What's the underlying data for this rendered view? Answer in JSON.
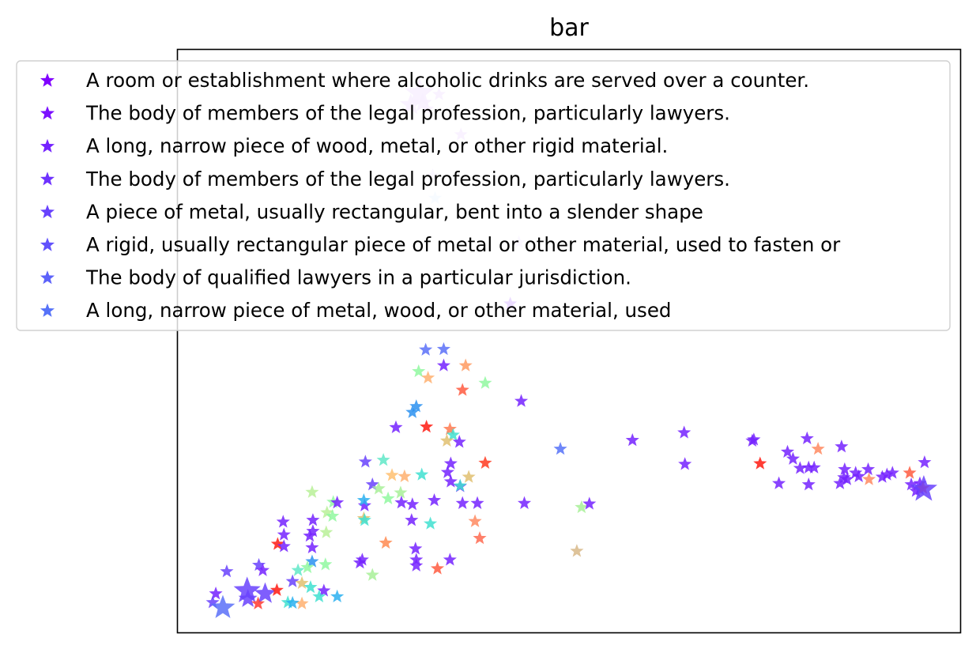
{
  "chart_data": {
    "type": "scatter",
    "title": "bar",
    "xlabel": "",
    "ylabel": "",
    "xlim": [
      0,
      100
    ],
    "ylim": [
      0,
      100
    ],
    "axis_ticks": "none",
    "grid": false,
    "legend_position": "top",
    "marker": "star",
    "colormap": "rainbow",
    "legend": [
      {
        "label": "A room or establishment where alcoholic drinks are served over a counter.",
        "color": "#8000ff"
      },
      {
        "label": "The body of members of the legal profession, particularly lawyers.",
        "color": "#7b10ff"
      },
      {
        "label": "A long, narrow piece of wood, metal, or other rigid material.",
        "color": "#7422ff"
      },
      {
        "label": "The body of members of the legal profession, particularly lawyers.",
        "color": "#6e32fe"
      },
      {
        "label": "A piece of metal, usually rectangular, bent into a slender shape",
        "color": "#6842fd"
      },
      {
        "label": "A rigid, usually rectangular piece of metal or other material, used to fasten or",
        "color": "#6252fc"
      },
      {
        "label": "The body of qualified lawyers in a particular jurisdiction.",
        "color": "#5c62fa"
      },
      {
        "label": "A long, narrow piece of metal, wood, or other material, used",
        "color": "#5672f8"
      }
    ],
    "points": [
      {
        "x": 30.9,
        "y": 92.5,
        "color": "#d8b0ff",
        "size": 2.2
      },
      {
        "x": 29.8,
        "y": 90.5,
        "color": "#d8b0ff",
        "size": 1.6
      },
      {
        "x": 31.3,
        "y": 90.8,
        "color": "#d8b0ff",
        "size": 1.4
      },
      {
        "x": 33.4,
        "y": 92.3,
        "color": "#d8b0ff",
        "size": 1.0
      },
      {
        "x": 31.9,
        "y": 89.8,
        "color": "#d8b0ff",
        "size": 1.0
      },
      {
        "x": 36.2,
        "y": 85.4,
        "color": "#d8b0ff",
        "size": 1.0
      },
      {
        "x": 32.6,
        "y": 78.4,
        "color": "#e0ccff",
        "size": 1.0
      },
      {
        "x": 32.9,
        "y": 74.5,
        "color": "#cfe8ff",
        "size": 1.0
      },
      {
        "x": 43.6,
        "y": 66.9,
        "color": "#e0ccff",
        "size": 1.0
      },
      {
        "x": 42.5,
        "y": 56.4,
        "color": "#8a30ff",
        "size": 1.0
      },
      {
        "x": 31.7,
        "y": 48.5,
        "color": "#5a70f8",
        "size": 1.0
      },
      {
        "x": 34.0,
        "y": 48.6,
        "color": "#5a70f8",
        "size": 1.0
      },
      {
        "x": 34.0,
        "y": 45.8,
        "color": "#7422ff",
        "size": 1.0
      },
      {
        "x": 36.8,
        "y": 45.8,
        "color": "#ff9a60",
        "size": 1.0
      },
      {
        "x": 30.8,
        "y": 44.8,
        "color": "#90f8a0",
        "size": 1.0
      },
      {
        "x": 32.0,
        "y": 43.7,
        "color": "#ffb070",
        "size": 1.0
      },
      {
        "x": 39.3,
        "y": 42.8,
        "color": "#90f8a0",
        "size": 1.0
      },
      {
        "x": 36.4,
        "y": 41.6,
        "color": "#ff5a40",
        "size": 1.0
      },
      {
        "x": 43.9,
        "y": 39.7,
        "color": "#7422ff",
        "size": 1.0
      },
      {
        "x": 30.0,
        "y": 37.8,
        "color": "#2a90f0",
        "size": 1.0
      },
      {
        "x": 30.5,
        "y": 38.8,
        "color": "#2a90f0",
        "size": 1.0
      },
      {
        "x": 27.9,
        "y": 35.2,
        "color": "#7422ff",
        "size": 1.0
      },
      {
        "x": 31.8,
        "y": 35.3,
        "color": "#ff1a10",
        "size": 1.0
      },
      {
        "x": 34.8,
        "y": 34.9,
        "color": "#ff7a50",
        "size": 1.0
      },
      {
        "x": 35.2,
        "y": 33.9,
        "color": "#40e0d0",
        "size": 1.0
      },
      {
        "x": 34.4,
        "y": 32.9,
        "color": "#e0c070",
        "size": 1.0
      },
      {
        "x": 36.0,
        "y": 32.7,
        "color": "#7422ff",
        "size": 1.0
      },
      {
        "x": 58.1,
        "y": 33.0,
        "color": "#7422ff",
        "size": 1.0
      },
      {
        "x": 64.7,
        "y": 34.3,
        "color": "#7422ff",
        "size": 1.0
      },
      {
        "x": 48.9,
        "y": 31.5,
        "color": "#5672f8",
        "size": 1.0
      },
      {
        "x": 73.6,
        "y": 33.1,
        "color": "#7422ff",
        "size": 1.0
      },
      {
        "x": 73.4,
        "y": 32.9,
        "color": "#7422ff",
        "size": 1.0
      },
      {
        "x": 80.4,
        "y": 33.3,
        "color": "#7422ff",
        "size": 1.0
      },
      {
        "x": 84.8,
        "y": 31.9,
        "color": "#7422ff",
        "size": 1.0
      },
      {
        "x": 77.9,
        "y": 31.0,
        "color": "#7422ff",
        "size": 1.0
      },
      {
        "x": 81.8,
        "y": 31.5,
        "color": "#ff8a60",
        "size": 1.0
      },
      {
        "x": 24.0,
        "y": 29.3,
        "color": "#6842fd",
        "size": 1.0
      },
      {
        "x": 26.3,
        "y": 29.6,
        "color": "#60e8c8",
        "size": 1.0
      },
      {
        "x": 34.9,
        "y": 29.0,
        "color": "#7422ff",
        "size": 1.0
      },
      {
        "x": 39.3,
        "y": 29.1,
        "color": "#ff3a20",
        "size": 1.0
      },
      {
        "x": 64.8,
        "y": 28.9,
        "color": "#7422ff",
        "size": 1.0
      },
      {
        "x": 74.4,
        "y": 29.0,
        "color": "#ff1a10",
        "size": 1.0
      },
      {
        "x": 78.6,
        "y": 29.8,
        "color": "#7422ff",
        "size": 1.0
      },
      {
        "x": 79.5,
        "y": 28.2,
        "color": "#7422ff",
        "size": 1.0
      },
      {
        "x": 80.6,
        "y": 28.3,
        "color": "#7422ff",
        "size": 1.0
      },
      {
        "x": 81.3,
        "y": 28.3,
        "color": "#7422ff",
        "size": 1.0
      },
      {
        "x": 85.2,
        "y": 28.0,
        "color": "#7422ff",
        "size": 1.0
      },
      {
        "x": 86.6,
        "y": 27.4,
        "color": "#7422ff",
        "size": 1.0
      },
      {
        "x": 88.2,
        "y": 28.0,
        "color": "#7422ff",
        "size": 1.0
      },
      {
        "x": 90.0,
        "y": 26.7,
        "color": "#7422ff",
        "size": 1.0
      },
      {
        "x": 90.6,
        "y": 27.1,
        "color": "#7422ff",
        "size": 1.0
      },
      {
        "x": 91.3,
        "y": 27.4,
        "color": "#7422ff",
        "size": 1.0
      },
      {
        "x": 93.5,
        "y": 27.4,
        "color": "#ff5a40",
        "size": 1.0
      },
      {
        "x": 95.4,
        "y": 29.2,
        "color": "#7422ff",
        "size": 1.0
      },
      {
        "x": 27.4,
        "y": 27.0,
        "color": "#ffc070",
        "size": 1.0
      },
      {
        "x": 29.0,
        "y": 26.8,
        "color": "#ffb070",
        "size": 1.0
      },
      {
        "x": 31.2,
        "y": 27.1,
        "color": "#40e0d0",
        "size": 1.0
      },
      {
        "x": 34.5,
        "y": 27.5,
        "color": "#7422ff",
        "size": 1.0
      },
      {
        "x": 37.2,
        "y": 26.7,
        "color": "#e0c070",
        "size": 1.0
      },
      {
        "x": 34.9,
        "y": 25.9,
        "color": "#7422ff",
        "size": 1.0
      },
      {
        "x": 36.1,
        "y": 25.1,
        "color": "#7422ff",
        "size": 1.0
      },
      {
        "x": 76.8,
        "y": 25.6,
        "color": "#7422ff",
        "size": 1.0
      },
      {
        "x": 80.6,
        "y": 25.4,
        "color": "#7422ff",
        "size": 1.0
      },
      {
        "x": 84.6,
        "y": 25.6,
        "color": "#7422ff",
        "size": 1.0
      },
      {
        "x": 85.5,
        "y": 26.3,
        "color": "#7422ff",
        "size": 1.0
      },
      {
        "x": 85.1,
        "y": 26.6,
        "color": "#7422ff",
        "size": 1.0
      },
      {
        "x": 87.0,
        "y": 26.8,
        "color": "#7422ff",
        "size": 1.0
      },
      {
        "x": 88.3,
        "y": 26.3,
        "color": "#ff8a60",
        "size": 1.0
      },
      {
        "x": 93.7,
        "y": 25.4,
        "color": "#7422ff",
        "size": 1.0
      },
      {
        "x": 94.8,
        "y": 25.6,
        "color": "#7422ff",
        "size": 1.0
      },
      {
        "x": 94.3,
        "y": 24.3,
        "color": "#7422ff",
        "size": 1.0
      },
      {
        "x": 94.8,
        "y": 24.6,
        "color": "#7422ff",
        "size": 1.0
      },
      {
        "x": 95.2,
        "y": 24.8,
        "color": "#ff4a30",
        "size": 1.0
      },
      {
        "x": 95.3,
        "y": 24.6,
        "color": "#6842fd",
        "size": 2.0
      },
      {
        "x": 24.9,
        "y": 25.4,
        "color": "#6842fd",
        "size": 1.0
      },
      {
        "x": 25.7,
        "y": 24.7,
        "color": "#a8f098",
        "size": 1.0
      },
      {
        "x": 28.5,
        "y": 24.0,
        "color": "#a8f098",
        "size": 1.0
      },
      {
        "x": 36.1,
        "y": 25.2,
        "color": "#40e0d0",
        "size": 1.0
      },
      {
        "x": 17.2,
        "y": 24.1,
        "color": "#b8f098",
        "size": 1.0
      },
      {
        "x": 19.9,
        "y": 22.4,
        "color": "#90f8a0",
        "size": 1.0
      },
      {
        "x": 20.4,
        "y": 22.3,
        "color": "#7422ff",
        "size": 1.0
      },
      {
        "x": 23.9,
        "y": 21.8,
        "color": "#7422ff",
        "size": 1.0
      },
      {
        "x": 23.8,
        "y": 22.7,
        "color": "#2ab0f0",
        "size": 1.0
      },
      {
        "x": 26.9,
        "y": 23.0,
        "color": "#90f8a0",
        "size": 1.0
      },
      {
        "x": 28.6,
        "y": 22.3,
        "color": "#7422ff",
        "size": 1.0
      },
      {
        "x": 30.0,
        "y": 22.0,
        "color": "#7422ff",
        "size": 1.0
      },
      {
        "x": 32.8,
        "y": 22.7,
        "color": "#7422ff",
        "size": 1.0
      },
      {
        "x": 36.4,
        "y": 22.2,
        "color": "#7422ff",
        "size": 1.0
      },
      {
        "x": 38.3,
        "y": 22.2,
        "color": "#7422ff",
        "size": 1.0
      },
      {
        "x": 44.3,
        "y": 22.2,
        "color": "#7422ff",
        "size": 1.0
      },
      {
        "x": 51.6,
        "y": 21.5,
        "color": "#a8f098",
        "size": 1.0
      },
      {
        "x": 52.6,
        "y": 22.1,
        "color": "#7422ff",
        "size": 1.0
      },
      {
        "x": 13.5,
        "y": 19.0,
        "color": "#7422ff",
        "size": 1.0
      },
      {
        "x": 17.3,
        "y": 19.3,
        "color": "#7422ff",
        "size": 1.0
      },
      {
        "x": 19.1,
        "y": 20.6,
        "color": "#b8f098",
        "size": 1.0
      },
      {
        "x": 19.8,
        "y": 20.0,
        "color": "#90f8a0",
        "size": 1.0
      },
      {
        "x": 23.8,
        "y": 19.6,
        "color": "#e0c070",
        "size": 1.0
      },
      {
        "x": 23.9,
        "y": 19.3,
        "color": "#40e0d0",
        "size": 1.0
      },
      {
        "x": 29.9,
        "y": 19.3,
        "color": "#7422ff",
        "size": 1.0
      },
      {
        "x": 32.3,
        "y": 18.7,
        "color": "#40e0d0",
        "size": 1.0
      },
      {
        "x": 38.0,
        "y": 19.1,
        "color": "#ff8a60",
        "size": 1.0
      },
      {
        "x": 13.6,
        "y": 16.8,
        "color": "#7422ff",
        "size": 1.0
      },
      {
        "x": 16.9,
        "y": 16.6,
        "color": "#7422ff",
        "size": 1.0
      },
      {
        "x": 17.3,
        "y": 17.4,
        "color": "#7422ff",
        "size": 1.0
      },
      {
        "x": 19.0,
        "y": 17.2,
        "color": "#b8f098",
        "size": 1.0
      },
      {
        "x": 38.6,
        "y": 16.2,
        "color": "#ff6a50",
        "size": 1.0
      },
      {
        "x": 12.8,
        "y": 15.2,
        "color": "#ff1a10",
        "size": 1.0
      },
      {
        "x": 13.6,
        "y": 14.8,
        "color": "#7422ff",
        "size": 1.0
      },
      {
        "x": 17.2,
        "y": 14.6,
        "color": "#7422ff",
        "size": 1.0
      },
      {
        "x": 26.6,
        "y": 15.4,
        "color": "#ff8a50",
        "size": 1.0
      },
      {
        "x": 30.4,
        "y": 14.4,
        "color": "#7422ff",
        "size": 1.0
      },
      {
        "x": 51.0,
        "y": 14.0,
        "color": "#d8b888",
        "size": 1.0
      },
      {
        "x": 17.2,
        "y": 12.2,
        "color": "#2a90f0",
        "size": 1.0
      },
      {
        "x": 18.9,
        "y": 11.7,
        "color": "#90f8a0",
        "size": 1.0
      },
      {
        "x": 23.6,
        "y": 12.5,
        "color": "#7422ff",
        "size": 1.0
      },
      {
        "x": 23.3,
        "y": 12.0,
        "color": "#7422ff",
        "size": 1.0
      },
      {
        "x": 30.5,
        "y": 12.5,
        "color": "#7422ff",
        "size": 1.0
      },
      {
        "x": 34.8,
        "y": 12.5,
        "color": "#7422ff",
        "size": 1.0
      },
      {
        "x": 30.5,
        "y": 11.5,
        "color": "#7422ff",
        "size": 1.0
      },
      {
        "x": 33.2,
        "y": 11.0,
        "color": "#ff5a40",
        "size": 1.0
      },
      {
        "x": 6.3,
        "y": 10.5,
        "color": "#6842fd",
        "size": 1.0
      },
      {
        "x": 10.4,
        "y": 11.6,
        "color": "#6842fd",
        "size": 1.0
      },
      {
        "x": 10.9,
        "y": 10.7,
        "color": "#7422ff",
        "size": 1.0
      },
      {
        "x": 15.4,
        "y": 10.7,
        "color": "#60e8c8",
        "size": 1.0
      },
      {
        "x": 16.6,
        "y": 11.2,
        "color": "#90f8a0",
        "size": 1.0
      },
      {
        "x": 24.9,
        "y": 9.9,
        "color": "#a8f098",
        "size": 1.0
      },
      {
        "x": 14.7,
        "y": 8.8,
        "color": "#6842fd",
        "size": 1.0
      },
      {
        "x": 15.9,
        "y": 8.5,
        "color": "#e0c070",
        "size": 1.0
      },
      {
        "x": 17.0,
        "y": 7.8,
        "color": "#40e0d0",
        "size": 1.0
      },
      {
        "x": 18.7,
        "y": 7.2,
        "color": "#7422ff",
        "size": 1.0
      },
      {
        "x": 4.9,
        "y": 6.7,
        "color": "#7422ff",
        "size": 1.0
      },
      {
        "x": 8.9,
        "y": 7.2,
        "color": "#6842fd",
        "size": 2.0
      },
      {
        "x": 11.2,
        "y": 6.7,
        "color": "#6842fd",
        "size": 1.6
      },
      {
        "x": 12.7,
        "y": 7.3,
        "color": "#ff1a10",
        "size": 1.0
      },
      {
        "x": 4.5,
        "y": 5.2,
        "color": "#6842fd",
        "size": 1.0
      },
      {
        "x": 9.0,
        "y": 5.8,
        "color": "#6842fd",
        "size": 1.4
      },
      {
        "x": 10.3,
        "y": 5.0,
        "color": "#ff3a30",
        "size": 1.0
      },
      {
        "x": 14.1,
        "y": 5.2,
        "color": "#40e0d0",
        "size": 1.0
      },
      {
        "x": 15.9,
        "y": 5.0,
        "color": "#ffb070",
        "size": 1.0
      },
      {
        "x": 18.1,
        "y": 6.2,
        "color": "#40e0d0",
        "size": 1.0
      },
      {
        "x": 20.4,
        "y": 6.2,
        "color": "#2ab0f0",
        "size": 1.0
      },
      {
        "x": 5.8,
        "y": 4.3,
        "color": "#5a70f8",
        "size": 1.8
      },
      {
        "x": 14.7,
        "y": 5.1,
        "color": "#2ab0f0",
        "size": 1.0
      }
    ]
  }
}
